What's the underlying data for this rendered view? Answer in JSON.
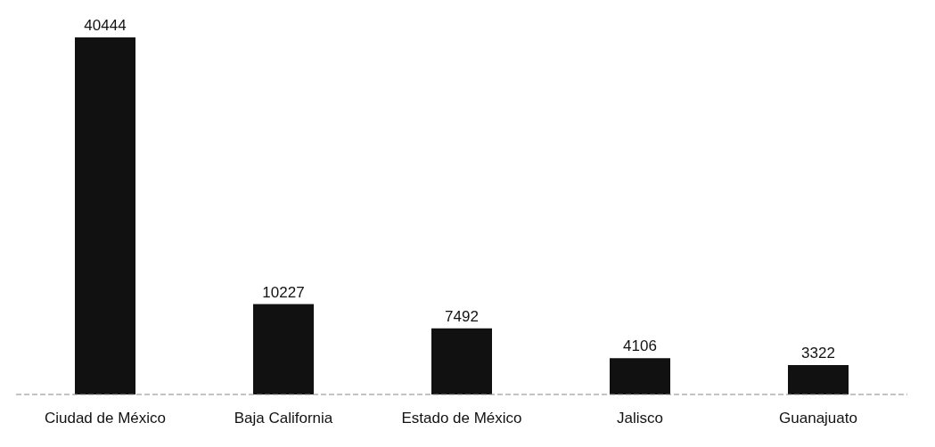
{
  "chart_data": {
    "type": "bar",
    "categories": [
      "Ciudad de México",
      "Baja California",
      "Estado de México",
      "Jalisco",
      "Guanajuato"
    ],
    "values": [
      40444,
      10227,
      7492,
      4106,
      3322
    ],
    "color": "#111111",
    "data_labels": true,
    "grid": false,
    "legend": false
  }
}
